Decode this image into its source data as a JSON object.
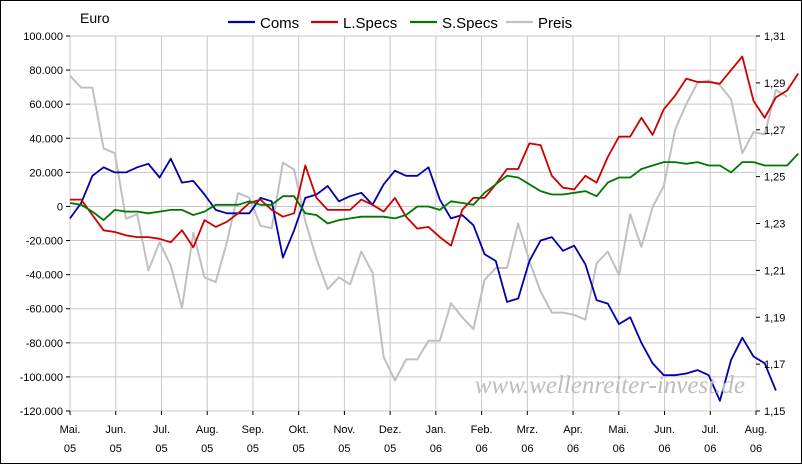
{
  "chart_data": {
    "type": "line",
    "unit_left": "Euro",
    "watermark": "www.wellenreiter-invest.de",
    "x_labels": [
      {
        "month": "Mai.",
        "year": "05"
      },
      {
        "month": "Jun.",
        "year": "05"
      },
      {
        "month": "Jul.",
        "year": "05"
      },
      {
        "month": "Aug.",
        "year": "05"
      },
      {
        "month": "Sep.",
        "year": "05"
      },
      {
        "month": "Okt.",
        "year": "05"
      },
      {
        "month": "Nov.",
        "year": "05"
      },
      {
        "month": "Dez.",
        "year": "05"
      },
      {
        "month": "Jan.",
        "year": "06"
      },
      {
        "month": "Feb.",
        "year": "06"
      },
      {
        "month": "Mrz.",
        "year": "06"
      },
      {
        "month": "Apr.",
        "year": "06"
      },
      {
        "month": "Mai.",
        "year": "06"
      },
      {
        "month": "Jun.",
        "year": "06"
      },
      {
        "month": "Jul.",
        "year": "06"
      },
      {
        "month": "Aug.",
        "year": "06"
      }
    ],
    "xlim": [
      0,
      15
    ],
    "y_left": {
      "ylim": [
        -120000,
        100000
      ],
      "ticks": [
        100000,
        80000,
        60000,
        40000,
        20000,
        0,
        -20000,
        -40000,
        -60000,
        -80000,
        -100000,
        -120000
      ],
      "tick_labels": [
        "100.000",
        "80.000",
        "60.000",
        "40.000",
        "20.000",
        "0",
        "-20.000",
        "-40.000",
        "-60.000",
        "-80.000",
        "-100.000",
        "-120.000"
      ]
    },
    "y_right": {
      "ylim": [
        1.15,
        1.31
      ],
      "ticks": [
        1.31,
        1.29,
        1.27,
        1.25,
        1.23,
        1.21,
        1.19,
        1.17,
        1.15
      ],
      "tick_labels": [
        "1,31",
        "1,29",
        "1,27",
        "1,25",
        "1,23",
        "1,21",
        "1,19",
        "1,17",
        "1,15"
      ]
    },
    "grid": true,
    "legend_position": "top",
    "series": [
      {
        "name": "Coms",
        "color": "#0000aa",
        "axis": "left",
        "step": 0.245,
        "values": [
          -7000,
          2000,
          18000,
          23000,
          20000,
          20000,
          23000,
          25000,
          17000,
          28000,
          14000,
          15000,
          7000,
          -2000,
          -4000,
          -4000,
          -4000,
          5000,
          3000,
          -30000,
          -14000,
          5000,
          7000,
          12000,
          3000,
          6000,
          8000,
          1000,
          13000,
          21000,
          18000,
          18000,
          23000,
          4000,
          -7000,
          -5000,
          -11000,
          -28000,
          -32000,
          -56000,
          -54000,
          -32000,
          -20000,
          -18000,
          -26000,
          -23000,
          -34000,
          -55000,
          -57000,
          -69000,
          -65000,
          -80000,
          -92000,
          -99000,
          -99000,
          -98000,
          -96000,
          -99000,
          -114000,
          -90000,
          -77000,
          -88000,
          -92000,
          -108000
        ]
      },
      {
        "name": "L.Specs",
        "color": "#cc0000",
        "axis": "left",
        "step": 0.245,
        "values": [
          4000,
          4000,
          -5000,
          -14000,
          -15000,
          -17000,
          -18000,
          -18000,
          -19000,
          -21000,
          -14000,
          -24000,
          -8000,
          -12000,
          -9000,
          -4000,
          2000,
          4000,
          -2000,
          -6000,
          -4000,
          24000,
          5000,
          -2000,
          -2000,
          -2000,
          4000,
          1000,
          -3000,
          5000,
          -6000,
          -13000,
          -12000,
          -18000,
          -23000,
          -2000,
          5000,
          5000,
          13000,
          22000,
          22000,
          37000,
          36000,
          18000,
          11000,
          10000,
          18000,
          14000,
          29000,
          41000,
          41000,
          52000,
          42000,
          57000,
          65000,
          75000,
          73000,
          73000,
          72000,
          80000,
          88000,
          62000,
          52000,
          64000,
          68000,
          78000
        ]
      },
      {
        "name": "S.Specs",
        "color": "#007700",
        "axis": "left",
        "step": 0.245,
        "values": [
          2000,
          1000,
          -3000,
          -8000,
          -2000,
          -3000,
          -3000,
          -4000,
          -3000,
          -2000,
          -2000,
          -5000,
          -3000,
          1000,
          1000,
          1000,
          3000,
          1000,
          1000,
          6000,
          6000,
          -4000,
          -5000,
          -10000,
          -8000,
          -7000,
          -6000,
          -6000,
          -6000,
          -7000,
          -5000,
          0,
          0,
          -2000,
          3000,
          2000,
          1000,
          8000,
          13000,
          18000,
          17000,
          13000,
          9000,
          7000,
          7000,
          8000,
          9000,
          6000,
          14000,
          17000,
          17000,
          22000,
          24000,
          26000,
          26000,
          25000,
          26000,
          24000,
          24000,
          20000,
          26000,
          26000,
          24000,
          24000,
          24000,
          31000
        ]
      },
      {
        "name": "Preis",
        "color": "#c0c0c0",
        "axis": "right",
        "step": 0.245,
        "values": [
          1.293,
          1.288,
          1.288,
          1.262,
          1.26,
          1.232,
          1.234,
          1.21,
          1.222,
          1.212,
          1.194,
          1.226,
          1.207,
          1.205,
          1.222,
          1.243,
          1.241,
          1.229,
          1.228,
          1.256,
          1.253,
          1.231,
          1.215,
          1.202,
          1.207,
          1.204,
          1.218,
          1.209,
          1.173,
          1.163,
          1.172,
          1.172,
          1.18,
          1.18,
          1.196,
          1.19,
          1.185,
          1.206,
          1.211,
          1.211,
          1.23,
          1.214,
          1.201,
          1.192,
          1.192,
          1.191,
          1.189,
          1.213,
          1.218,
          1.208,
          1.234,
          1.22,
          1.237,
          1.246,
          1.27,
          1.281,
          1.29,
          1.291,
          1.289,
          1.283,
          1.26,
          1.269,
          1.268,
          1.287,
          1.284
        ]
      }
    ]
  }
}
